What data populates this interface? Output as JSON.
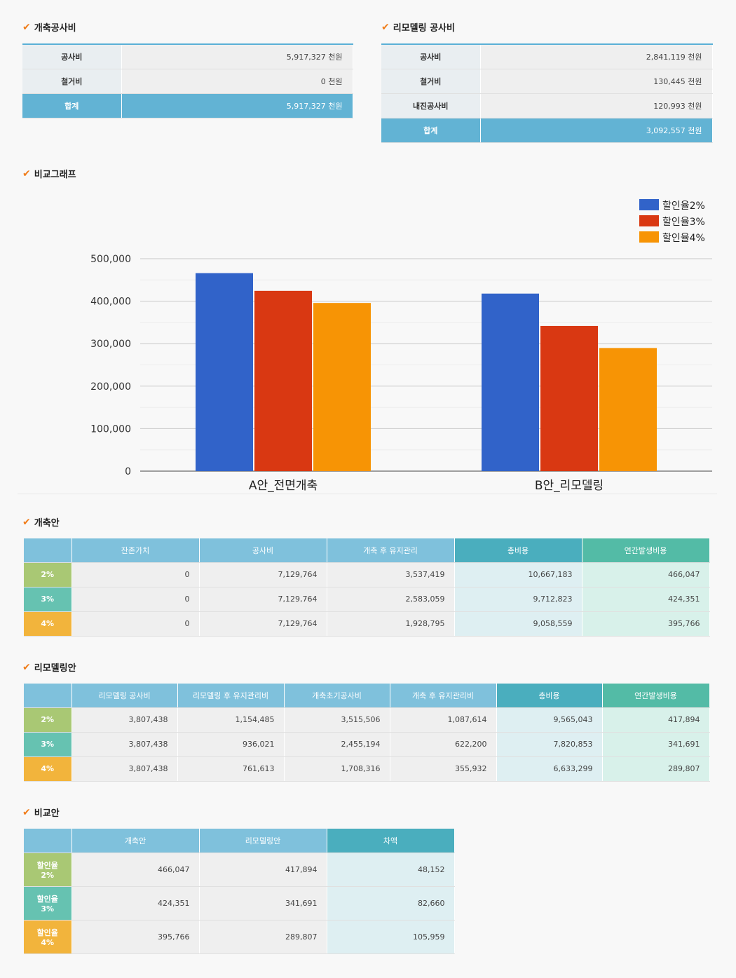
{
  "sections": {
    "rebuild_cost": "개축공사비",
    "remodel_cost": "리모델링 공사비",
    "graph": "비교그래프",
    "rebuild_plan": "개축안",
    "remodel_plan": "리모델링안",
    "compare_plan": "비교안"
  },
  "rebuild_cost": {
    "rows": [
      {
        "label": "공사비",
        "value": "5,917,327 천원"
      },
      {
        "label": "철거비",
        "value": "0 천원"
      }
    ],
    "total": {
      "label": "합계",
      "value": "5,917,327 천원"
    }
  },
  "remodel_cost": {
    "rows": [
      {
        "label": "공사비",
        "value": "2,841,119 천원"
      },
      {
        "label": "철거비",
        "value": "130,445 천원"
      },
      {
        "label": "내진공사비",
        "value": "120,993 천원"
      }
    ],
    "total": {
      "label": "합계",
      "value": "3,092,557 천원"
    }
  },
  "chart_data": {
    "type": "bar",
    "categories": [
      "A안_전면개축",
      "B안_리모델링"
    ],
    "series": [
      {
        "name": "할인율2%",
        "values": [
          466047,
          417894
        ],
        "color": "#3163c9"
      },
      {
        "name": "할인율3%",
        "values": [
          424351,
          341691
        ],
        "color": "#d93812"
      },
      {
        "name": "할인율4%",
        "values": [
          395766,
          289807
        ],
        "color": "#f79405"
      }
    ],
    "ylim": [
      0,
      500000
    ],
    "y_ticks": [
      "0",
      "100,000",
      "200,000",
      "300,000",
      "400,000",
      "500,000"
    ],
    "legend": "top-right",
    "grid": true
  },
  "rebuild_plan": {
    "headers": [
      "잔존가치",
      "공사비",
      "개축 후 유지관리",
      "총비용",
      "연간발생비용"
    ],
    "rows": [
      {
        "label": "2%",
        "cells": [
          "0",
          "7,129,764",
          "3,537,419",
          "10,667,183",
          "466,047"
        ]
      },
      {
        "label": "3%",
        "cells": [
          "0",
          "7,129,764",
          "2,583,059",
          "9,712,823",
          "424,351"
        ]
      },
      {
        "label": "4%",
        "cells": [
          "0",
          "7,129,764",
          "1,928,795",
          "9,058,559",
          "395,766"
        ]
      }
    ]
  },
  "remodel_plan": {
    "headers": [
      "리모델링 공사비",
      "리모델링 후 유지관리비",
      "개축초기공사비",
      "개축 후 유지관리비",
      "총비용",
      "연간발생비용"
    ],
    "rows": [
      {
        "label": "2%",
        "cells": [
          "3,807,438",
          "1,154,485",
          "3,515,506",
          "1,087,614",
          "9,565,043",
          "417,894"
        ]
      },
      {
        "label": "3%",
        "cells": [
          "3,807,438",
          "936,021",
          "2,455,194",
          "622,200",
          "7,820,853",
          "341,691"
        ]
      },
      {
        "label": "4%",
        "cells": [
          "3,807,438",
          "761,613",
          "1,708,316",
          "355,932",
          "6,633,299",
          "289,807"
        ]
      }
    ]
  },
  "compare_plan": {
    "headers": [
      "개축안",
      "리모델링안",
      "차액"
    ],
    "rows": [
      {
        "label1": "할인율",
        "label2": "2%",
        "cells": [
          "466,047",
          "417,894",
          "48,152"
        ]
      },
      {
        "label1": "할인율",
        "label2": "3%",
        "cells": [
          "424,351",
          "341,691",
          "82,660"
        ]
      },
      {
        "label1": "할인율",
        "label2": "4%",
        "cells": [
          "395,766",
          "289,807",
          "105,959"
        ]
      }
    ]
  }
}
